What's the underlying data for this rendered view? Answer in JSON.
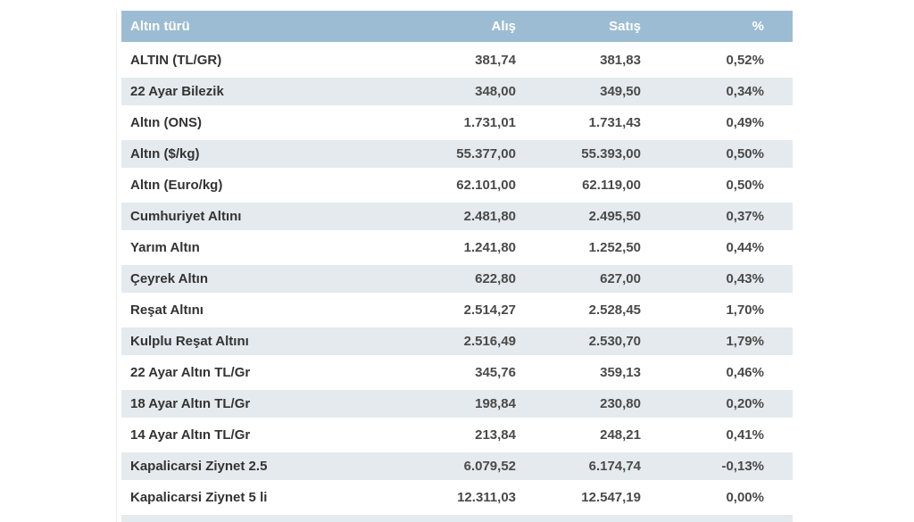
{
  "table": {
    "columns": [
      "Altın türü",
      "Alış",
      "Satış",
      "%"
    ],
    "rows": [
      {
        "name": "ALTIN (TL/GR)",
        "buy": "381,74",
        "sell": "381,83",
        "change": "0,52%"
      },
      {
        "name": "22 Ayar Bilezik",
        "buy": "348,00",
        "sell": "349,50",
        "change": "0,34%"
      },
      {
        "name": "Altın (ONS)",
        "buy": "1.731,01",
        "sell": "1.731,43",
        "change": "0,49%"
      },
      {
        "name": "Altın ($/kg)",
        "buy": "55.377,00",
        "sell": "55.393,00",
        "change": "0,50%"
      },
      {
        "name": "Altın (Euro/kg)",
        "buy": "62.101,00",
        "sell": "62.119,00",
        "change": "0,50%"
      },
      {
        "name": "Cumhuriyet Altını",
        "buy": "2.481,80",
        "sell": "2.495,50",
        "change": "0,37%"
      },
      {
        "name": "Yarım Altın",
        "buy": "1.241,80",
        "sell": "1.252,50",
        "change": "0,44%"
      },
      {
        "name": "Çeyrek Altın",
        "buy": "622,80",
        "sell": "627,00",
        "change": "0,43%"
      },
      {
        "name": "Reşat Altını",
        "buy": "2.514,27",
        "sell": "2.528,45",
        "change": "1,70%"
      },
      {
        "name": "Kulplu Reşat Altını",
        "buy": "2.516,49",
        "sell": "2.530,70",
        "change": "1,79%"
      },
      {
        "name": "22 Ayar Altın TL/Gr",
        "buy": "345,76",
        "sell": "359,13",
        "change": "0,46%"
      },
      {
        "name": "18 Ayar Altın TL/Gr",
        "buy": "198,84",
        "sell": "230,80",
        "change": "0,20%"
      },
      {
        "name": "14 Ayar Altın TL/Gr",
        "buy": "213,84",
        "sell": "248,21",
        "change": "0,41%"
      },
      {
        "name": "Kapalicarsi Ziynet 2.5",
        "buy": "6.079,52",
        "sell": "6.174,74",
        "change": "-0,13%"
      },
      {
        "name": "Kapalicarsi Ziynet 5 li",
        "buy": "12.311,03",
        "sell": "12.547,19",
        "change": "0,00%"
      }
    ]
  },
  "colors": {
    "header_bg": "#9cbcd3",
    "stripe_bg": "#e4eaee",
    "header_text": "#ffffff",
    "label_text": "#333333",
    "number_text": "#4a4a4a"
  }
}
